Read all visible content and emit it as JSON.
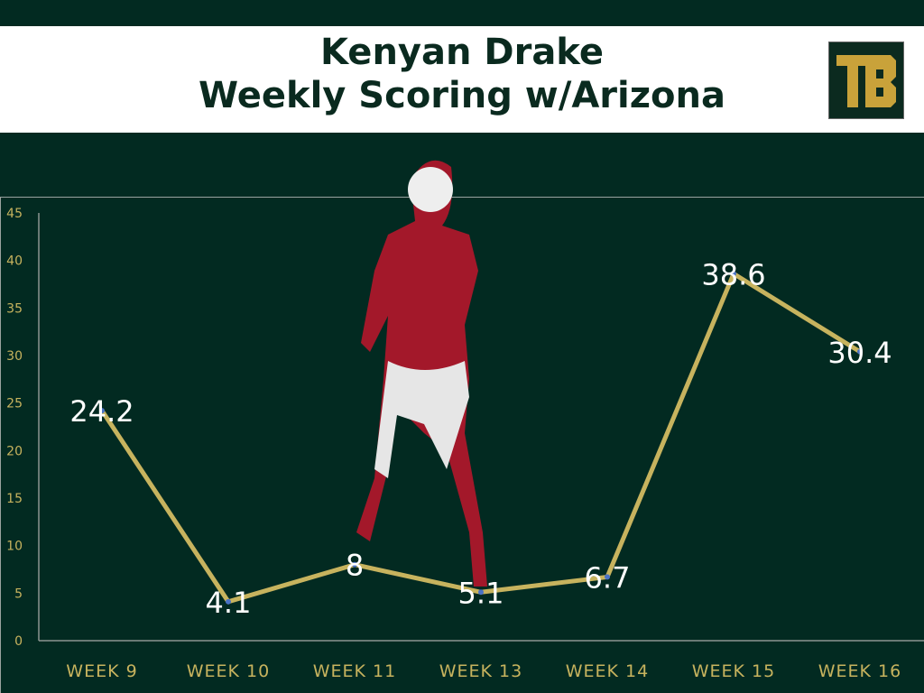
{
  "title_line1": "Kenyan Drake",
  "title_line2": "Weekly Scoring w/Arizona",
  "logo_text": "TB",
  "colors": {
    "background": "#022a21",
    "line": "#c7b35e",
    "axis_text": "#c7b35e",
    "data_label": "#ffffff",
    "logo_gold": "#c9a23a"
  },
  "chart_data": {
    "type": "line",
    "title": "Kenyan Drake Weekly Scoring w/Arizona",
    "categories": [
      "WEEK 9",
      "WEEK 10",
      "WEEK 11",
      "WEEK 13",
      "WEEK 14",
      "WEEK 15",
      "WEEK 16"
    ],
    "values": [
      24.2,
      4.1,
      8,
      5.1,
      6.7,
      38.6,
      30.4
    ],
    "labels": [
      "24.2",
      "4.1",
      "8",
      "5.1",
      "6.7",
      "38.6",
      "30.4"
    ],
    "yticks": [
      "0",
      "5",
      "10",
      "15",
      "20",
      "25",
      "30",
      "35",
      "40",
      "45"
    ],
    "ylim": [
      0,
      45
    ],
    "grid": false,
    "legend": "none"
  }
}
